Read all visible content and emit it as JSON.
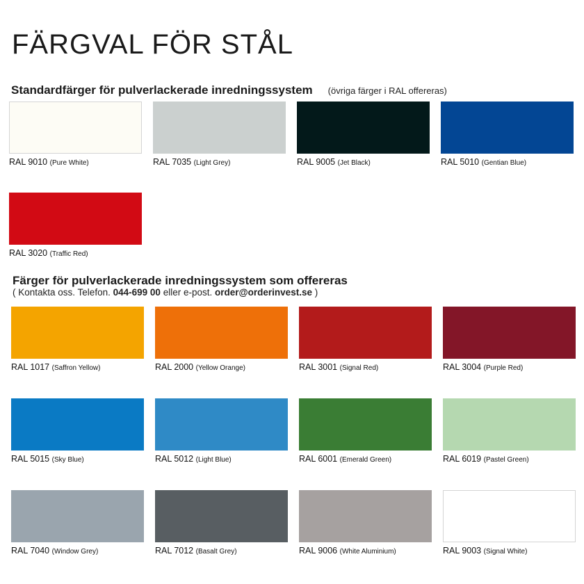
{
  "title": "FÄRGVAL FÖR STÅL",
  "standard": {
    "heading": "Standardfärger för pulverlackerade inredningssystem",
    "note": "(övriga färger i RAL offereras)",
    "colors": [
      {
        "code": "RAL 9010",
        "name": "(Pure White)",
        "hex": "#fdfcf5"
      },
      {
        "code": "RAL 7035",
        "name": "(Light Grey)",
        "hex": "#cbd0cf"
      },
      {
        "code": "RAL 9005",
        "name": "(Jet Black)",
        "hex": "#03191a"
      },
      {
        "code": "RAL 5010",
        "name": "(Gentian Blue)",
        "hex": "#034694"
      },
      {
        "code": "RAL 3020",
        "name": "(Traffic Red)",
        "hex": "#d20a14"
      }
    ]
  },
  "offered": {
    "heading": "Färger för pulverlackerade inredningssystem som offereras",
    "contact_prefix": "( Kontakta oss. Telefon.",
    "phone": "044-699 00",
    "contact_mid": "eller e-post.",
    "email": "order@orderinvest.se",
    "contact_suffix": ")",
    "colors": [
      {
        "code": "RAL 1017",
        "name": "(Saffron Yellow)",
        "hex": "#f4a400"
      },
      {
        "code": "RAL 2000",
        "name": "(Yellow Orange)",
        "hex": "#ee7009"
      },
      {
        "code": "RAL 3001",
        "name": "(Signal Red)",
        "hex": "#b31b1b"
      },
      {
        "code": "RAL 3004",
        "name": "(Purple Red)",
        "hex": "#831628"
      },
      {
        "code": "RAL 5015",
        "name": "(Sky Blue)",
        "hex": "#0a7ac4"
      },
      {
        "code": "RAL 5012",
        "name": "(Light Blue)",
        "hex": "#2f8ac6"
      },
      {
        "code": "RAL 6001",
        "name": "(Emerald Green)",
        "hex": "#3a7d34"
      },
      {
        "code": "RAL 6019",
        "name": "(Pastel Green)",
        "hex": "#b5d8b0"
      },
      {
        "code": "RAL 7040",
        "name": "(Window Grey)",
        "hex": "#9aa5ae"
      },
      {
        "code": "RAL 7012",
        "name": "(Basalt Grey)",
        "hex": "#585e62"
      },
      {
        "code": "RAL 9006",
        "name": "(White Aluminium)",
        "hex": "#a6a1a0"
      },
      {
        "code": "RAL 9003",
        "name": "(Signal White)",
        "hex": "#ffffff"
      }
    ]
  }
}
